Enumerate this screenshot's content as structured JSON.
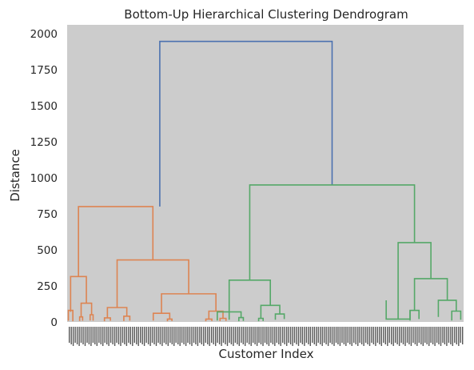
{
  "chart_data": {
    "type": "dendrogram",
    "title": "Bottom-Up Hierarchical Clustering Dendrogram",
    "xlabel": "Customer Index",
    "ylabel": "Distance",
    "ylim": [
      0,
      2060
    ],
    "yticks": [
      0,
      250,
      500,
      750,
      1000,
      1250,
      1500,
      1750,
      2000
    ],
    "grid": false,
    "background": "#cccccc",
    "colors": {
      "root": "#4c72b0",
      "cluster_1": "#dd8452",
      "cluster_2": "#55a868"
    },
    "links": [
      {
        "c": "root",
        "xl": 0.2568,
        "yl": 800,
        "xr": 0.7344,
        "yr": 950,
        "h": 1945
      },
      {
        "c": "cluster_1",
        "xl": 0.0314,
        "yl": 315,
        "xr": 0.2377,
        "yr": 430,
        "h": 800
      },
      {
        "c": "cluster_1",
        "xl": 0.0096,
        "yl": 70,
        "xr": 0.0533,
        "yr": 130,
        "h": 315
      },
      {
        "c": "cluster_1",
        "xl": 0.0034,
        "yl": 8,
        "xr": 0.0158,
        "yr": 5,
        "h": 80
      },
      {
        "c": "cluster_1",
        "xl": 0.0388,
        "yl": 35,
        "xr": 0.0678,
        "yr": 50,
        "h": 130
      },
      {
        "c": "cluster_1",
        "xl": 0.0347,
        "yl": 6,
        "xr": 0.0429,
        "yr": 8,
        "h": 35
      },
      {
        "c": "cluster_1",
        "xl": 0.0637,
        "yl": 10,
        "xr": 0.072,
        "yr": 9,
        "h": 50
      },
      {
        "c": "cluster_1",
        "xl": 0.1385,
        "yl": 100,
        "xr": 0.3369,
        "yr": 195,
        "h": 430
      },
      {
        "c": "cluster_1",
        "xl": 0.1116,
        "yl": 28,
        "xr": 0.1654,
        "yr": 40,
        "h": 100
      },
      {
        "c": "cluster_1",
        "xl": 0.1034,
        "yl": 5,
        "xr": 0.1199,
        "yr": 8,
        "h": 28
      },
      {
        "c": "cluster_1",
        "xl": 0.1571,
        "yl": 6,
        "xr": 0.1737,
        "yr": 9,
        "h": 40
      },
      {
        "c": "cluster_1",
        "xl": 0.2615,
        "yl": 60,
        "xr": 0.4124,
        "yr": 75,
        "h": 195
      },
      {
        "c": "cluster_1",
        "xl": 0.2387,
        "yl": 10,
        "xr": 0.2843,
        "yr": 20,
        "h": 60
      },
      {
        "c": "cluster_1",
        "xl": 0.278,
        "yl": 5,
        "xr": 0.2905,
        "yr": 6,
        "h": 20
      },
      {
        "c": "cluster_1",
        "xl": 0.3928,
        "yl": 20,
        "xr": 0.432,
        "yr": 25,
        "h": 75
      },
      {
        "c": "cluster_1",
        "xl": 0.3844,
        "yl": 5,
        "xr": 0.4011,
        "yr": 6,
        "h": 20
      },
      {
        "c": "cluster_1",
        "xl": 0.4237,
        "yl": 6,
        "xr": 0.4403,
        "yr": 7,
        "h": 25
      },
      {
        "c": "cluster_2",
        "xl": 0.5061,
        "yl": 290,
        "xr": 0.9628,
        "yr": 550,
        "h": 950
      },
      {
        "c": "cluster_2",
        "xl": 0.4491,
        "yl": 70,
        "xr": 0.5632,
        "yr": 115,
        "h": 290
      },
      {
        "c": "cluster_2",
        "xl": 0.4491,
        "yl": 15,
        "xr": 0.4491,
        "yr": 15,
        "h": 70
      },
      {
        "c": "cluster_2",
        "xl": 0.4161,
        "yl": 10,
        "xr": 0.4821,
        "yr": 30,
        "h": 70
      },
      {
        "c": "cluster_2",
        "xl": 0.4759,
        "yl": 5,
        "xr": 0.4884,
        "yr": 7,
        "h": 30
      },
      {
        "c": "cluster_2",
        "xl": 0.537,
        "yl": 25,
        "xr": 0.5894,
        "yr": 55,
        "h": 115
      },
      {
        "c": "cluster_2",
        "xl": 0.5308,
        "yl": 5,
        "xr": 0.5432,
        "yr": 6,
        "h": 25
      },
      {
        "c": "cluster_2",
        "xl": 0.5771,
        "yl": 15,
        "xr": 0.6018,
        "yr": 20,
        "h": 55
      },
      {
        "c": "cluster_2",
        "xl": 0.9174,
        "yl": 20,
        "xr": 1.0083,
        "yr": 300,
        "h": 550
      },
      {
        "c": "cluster_2",
        "xl": 0.8843,
        "yl": 150,
        "xr": 0.9504,
        "yr": 80,
        "h": 20
      },
      {
        "c": "cluster_2",
        "xl": 0.9628,
        "yl": 80,
        "xr": 1.0537,
        "yr": 150,
        "h": 300
      },
      {
        "c": "cluster_2",
        "xl": 0.9504,
        "yl": 10,
        "xr": 0.9752,
        "yr": 20,
        "h": 80
      },
      {
        "c": "cluster_2",
        "xl": 1.0289,
        "yl": 35,
        "xr": 1.0785,
        "yr": 75,
        "h": 150
      },
      {
        "c": "cluster_2",
        "xl": 1.0661,
        "yl": 10,
        "xr": 1.0909,
        "yr": 15,
        "h": 75
      }
    ]
  }
}
